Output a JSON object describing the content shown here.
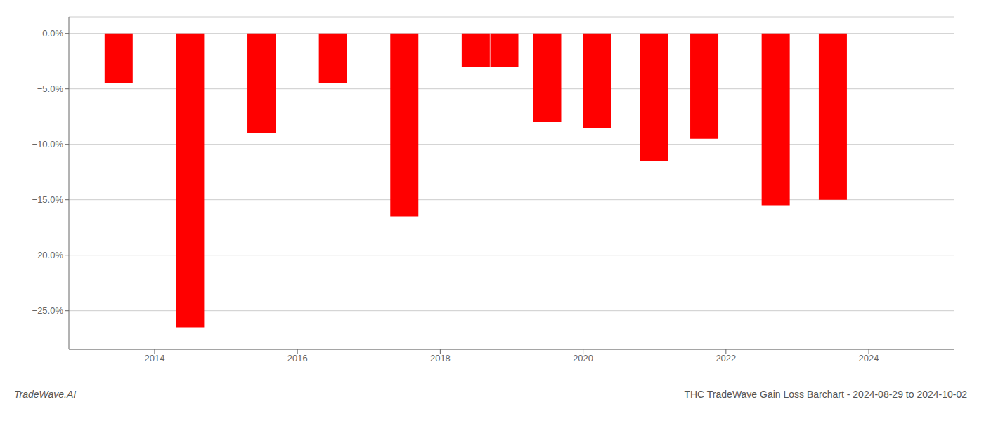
{
  "chart_data": {
    "type": "bar",
    "title": "THC TradeWave Gain Loss Barchart - 2024-08-29 to 2024-10-02",
    "annotations": [
      "TradeWave.AI"
    ],
    "x": [
      2013.5,
      2014.5,
      2015.5,
      2016.5,
      2017.5,
      2018.5,
      2018.9,
      2019.5,
      2020.2,
      2021.0,
      2021.7,
      2022.7,
      2023.5
    ],
    "values": [
      -4.5,
      -26.5,
      -9.0,
      -4.5,
      -16.5,
      -3.0,
      -3.0,
      -8.0,
      -8.5,
      -11.5,
      -9.5,
      -15.5,
      -15.0
    ],
    "color": "#ff0000",
    "xlim": [
      2012.8,
      2025.2
    ],
    "ylim": [
      -28.5,
      1.5
    ],
    "xticks": [
      2014,
      2016,
      2018,
      2020,
      2022,
      2024
    ],
    "yticks": [
      {
        "value": 0.0,
        "label": "0.0%"
      },
      {
        "value": -5.0,
        "label": "−5.0%"
      },
      {
        "value": -10.0,
        "label": "−10.0%"
      },
      {
        "value": -15.0,
        "label": "−15.0%"
      },
      {
        "value": -20.0,
        "label": "−20.0%"
      },
      {
        "value": -25.0,
        "label": "−25.0%"
      }
    ],
    "grid": true
  }
}
